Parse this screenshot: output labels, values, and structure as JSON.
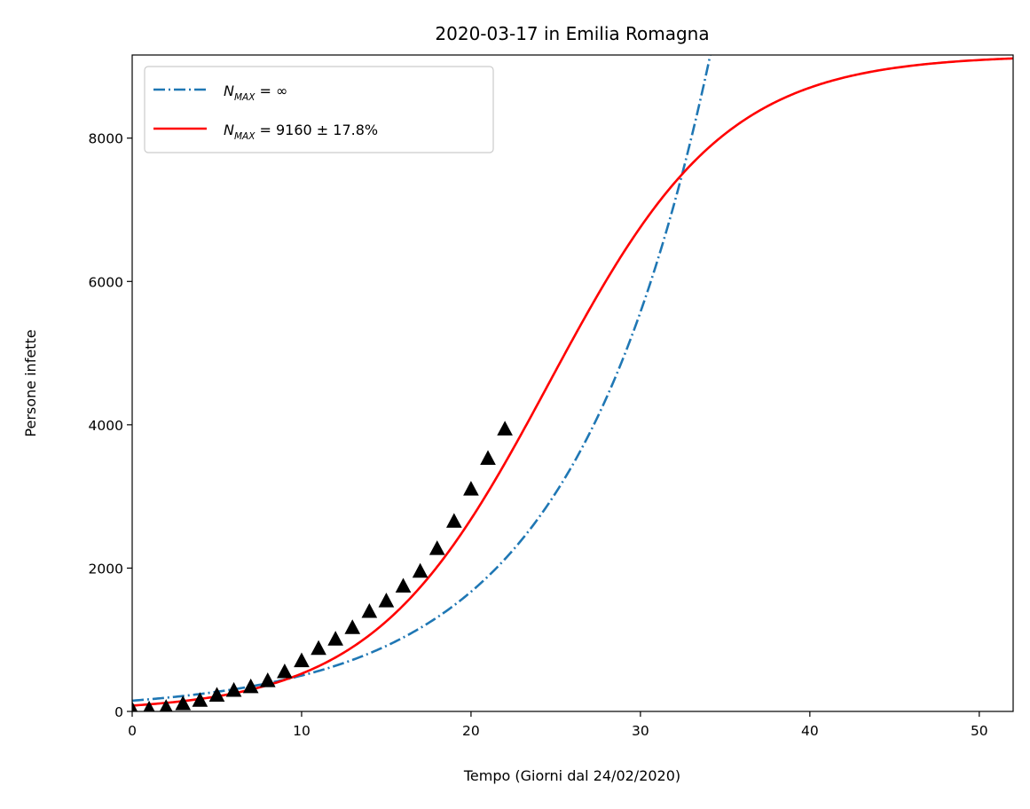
{
  "chart_data": {
    "type": "line",
    "title": "2020-03-17 in Emilia Romagna",
    "xlabel": "Tempo (Giorni dal 24/02/2020)",
    "ylabel": "Persone infette",
    "xlim": [
      0,
      52
    ],
    "ylim": [
      0,
      9160
    ],
    "x_ticks": [
      0,
      10,
      20,
      30,
      40,
      50
    ],
    "y_ticks": [
      0,
      2000,
      4000,
      6000,
      8000
    ],
    "grid": false,
    "legend_position": "top-left",
    "series": [
      {
        "id": "exponential",
        "legend_main": "N",
        "legend_sub": "MAX",
        "legend_tail": " = ∞",
        "style": "dash-dot",
        "color": "#1f77b4",
        "model": {
          "kind": "exponential",
          "A": 150,
          "r": 0.1205
        }
      },
      {
        "id": "logistic",
        "legend_main": "N",
        "legend_sub": "MAX",
        "legend_tail": " = 9160 ± 17.8%",
        "style": "solid",
        "color": "#ff0000",
        "model": {
          "kind": "logistic",
          "K": 9160,
          "r": 0.1915,
          "t0": 24.6
        }
      },
      {
        "id": "observed",
        "style": "markers",
        "marker": "triangle",
        "color": "#000000",
        "x": [
          0,
          1,
          2,
          3,
          4,
          5,
          6,
          7,
          8,
          9,
          10,
          11,
          12,
          13,
          14,
          15,
          16,
          17,
          18,
          19,
          20,
          21,
          22
        ],
        "y": [
          18,
          26,
          47,
          97,
          145,
          217,
          285,
          335,
          420,
          544,
          698,
          870,
          1000,
          1160,
          1386,
          1533,
          1739,
          1947,
          2263,
          2644,
          3093,
          3522,
          3931
        ]
      }
    ]
  }
}
